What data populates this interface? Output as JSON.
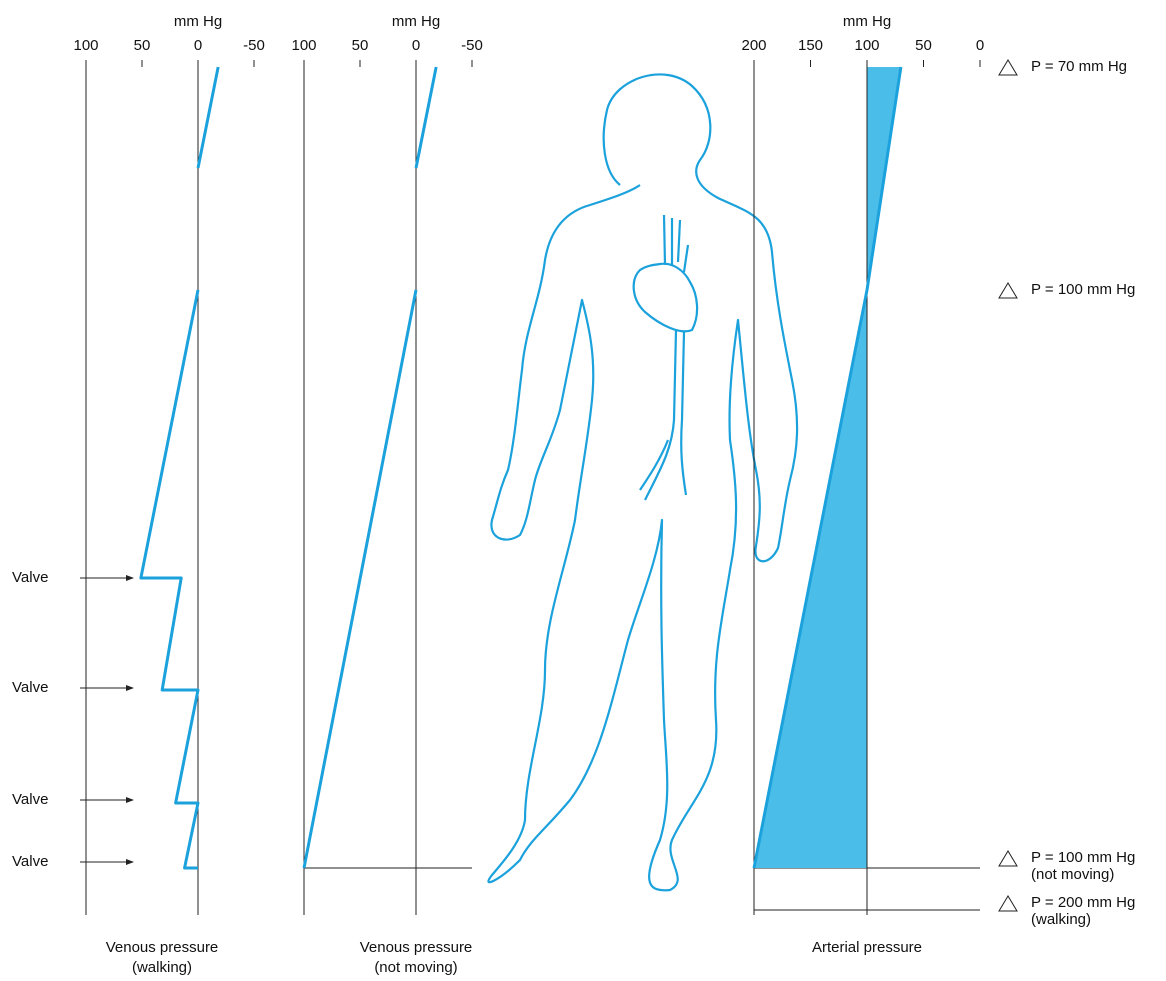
{
  "chart_data": [
    {
      "type": "line",
      "xlabel": "mm Hg",
      "xlim": [
        100,
        -50
      ],
      "xticks": [
        100,
        50,
        0,
        -50
      ],
      "caption": [
        "Venous pressure",
        "(walking)"
      ],
      "series": [
        {
          "color": "#1ba1dc",
          "values": [
            -18,
            0,
            null,
            0,
            51,
            15,
            32,
            0,
            20,
            0,
            12,
            0
          ]
        }
      ],
      "annotations": [
        "Valve",
        "Valve",
        "Valve",
        "Valve"
      ]
    },
    {
      "type": "line",
      "xlabel": "mm Hg",
      "xlim": [
        100,
        -50
      ],
      "xticks": [
        100,
        50,
        0,
        -50
      ],
      "caption": [
        "Venous pressure",
        "(not moving)"
      ],
      "series": [
        {
          "color": "#1ba1dc",
          "values": [
            -18,
            0,
            null,
            0,
            100
          ]
        }
      ]
    },
    {
      "type": "area",
      "xlabel": "mm Hg",
      "xlim": [
        200,
        0
      ],
      "xticks": [
        200,
        150,
        100,
        50,
        0
      ],
      "caption": [
        "Arterial pressure"
      ],
      "series": [
        {
          "color": "#4bbde9",
          "values": [
            70,
            100,
            200
          ]
        }
      ],
      "annotations": [
        [
          "P = 70 mm Hg"
        ],
        [
          "P = 100 mm Hg"
        ],
        [
          "P = 100 mm Hg",
          "(not moving)"
        ],
        [
          "P = 200 mm Hg",
          "(walking)"
        ]
      ]
    }
  ]
}
